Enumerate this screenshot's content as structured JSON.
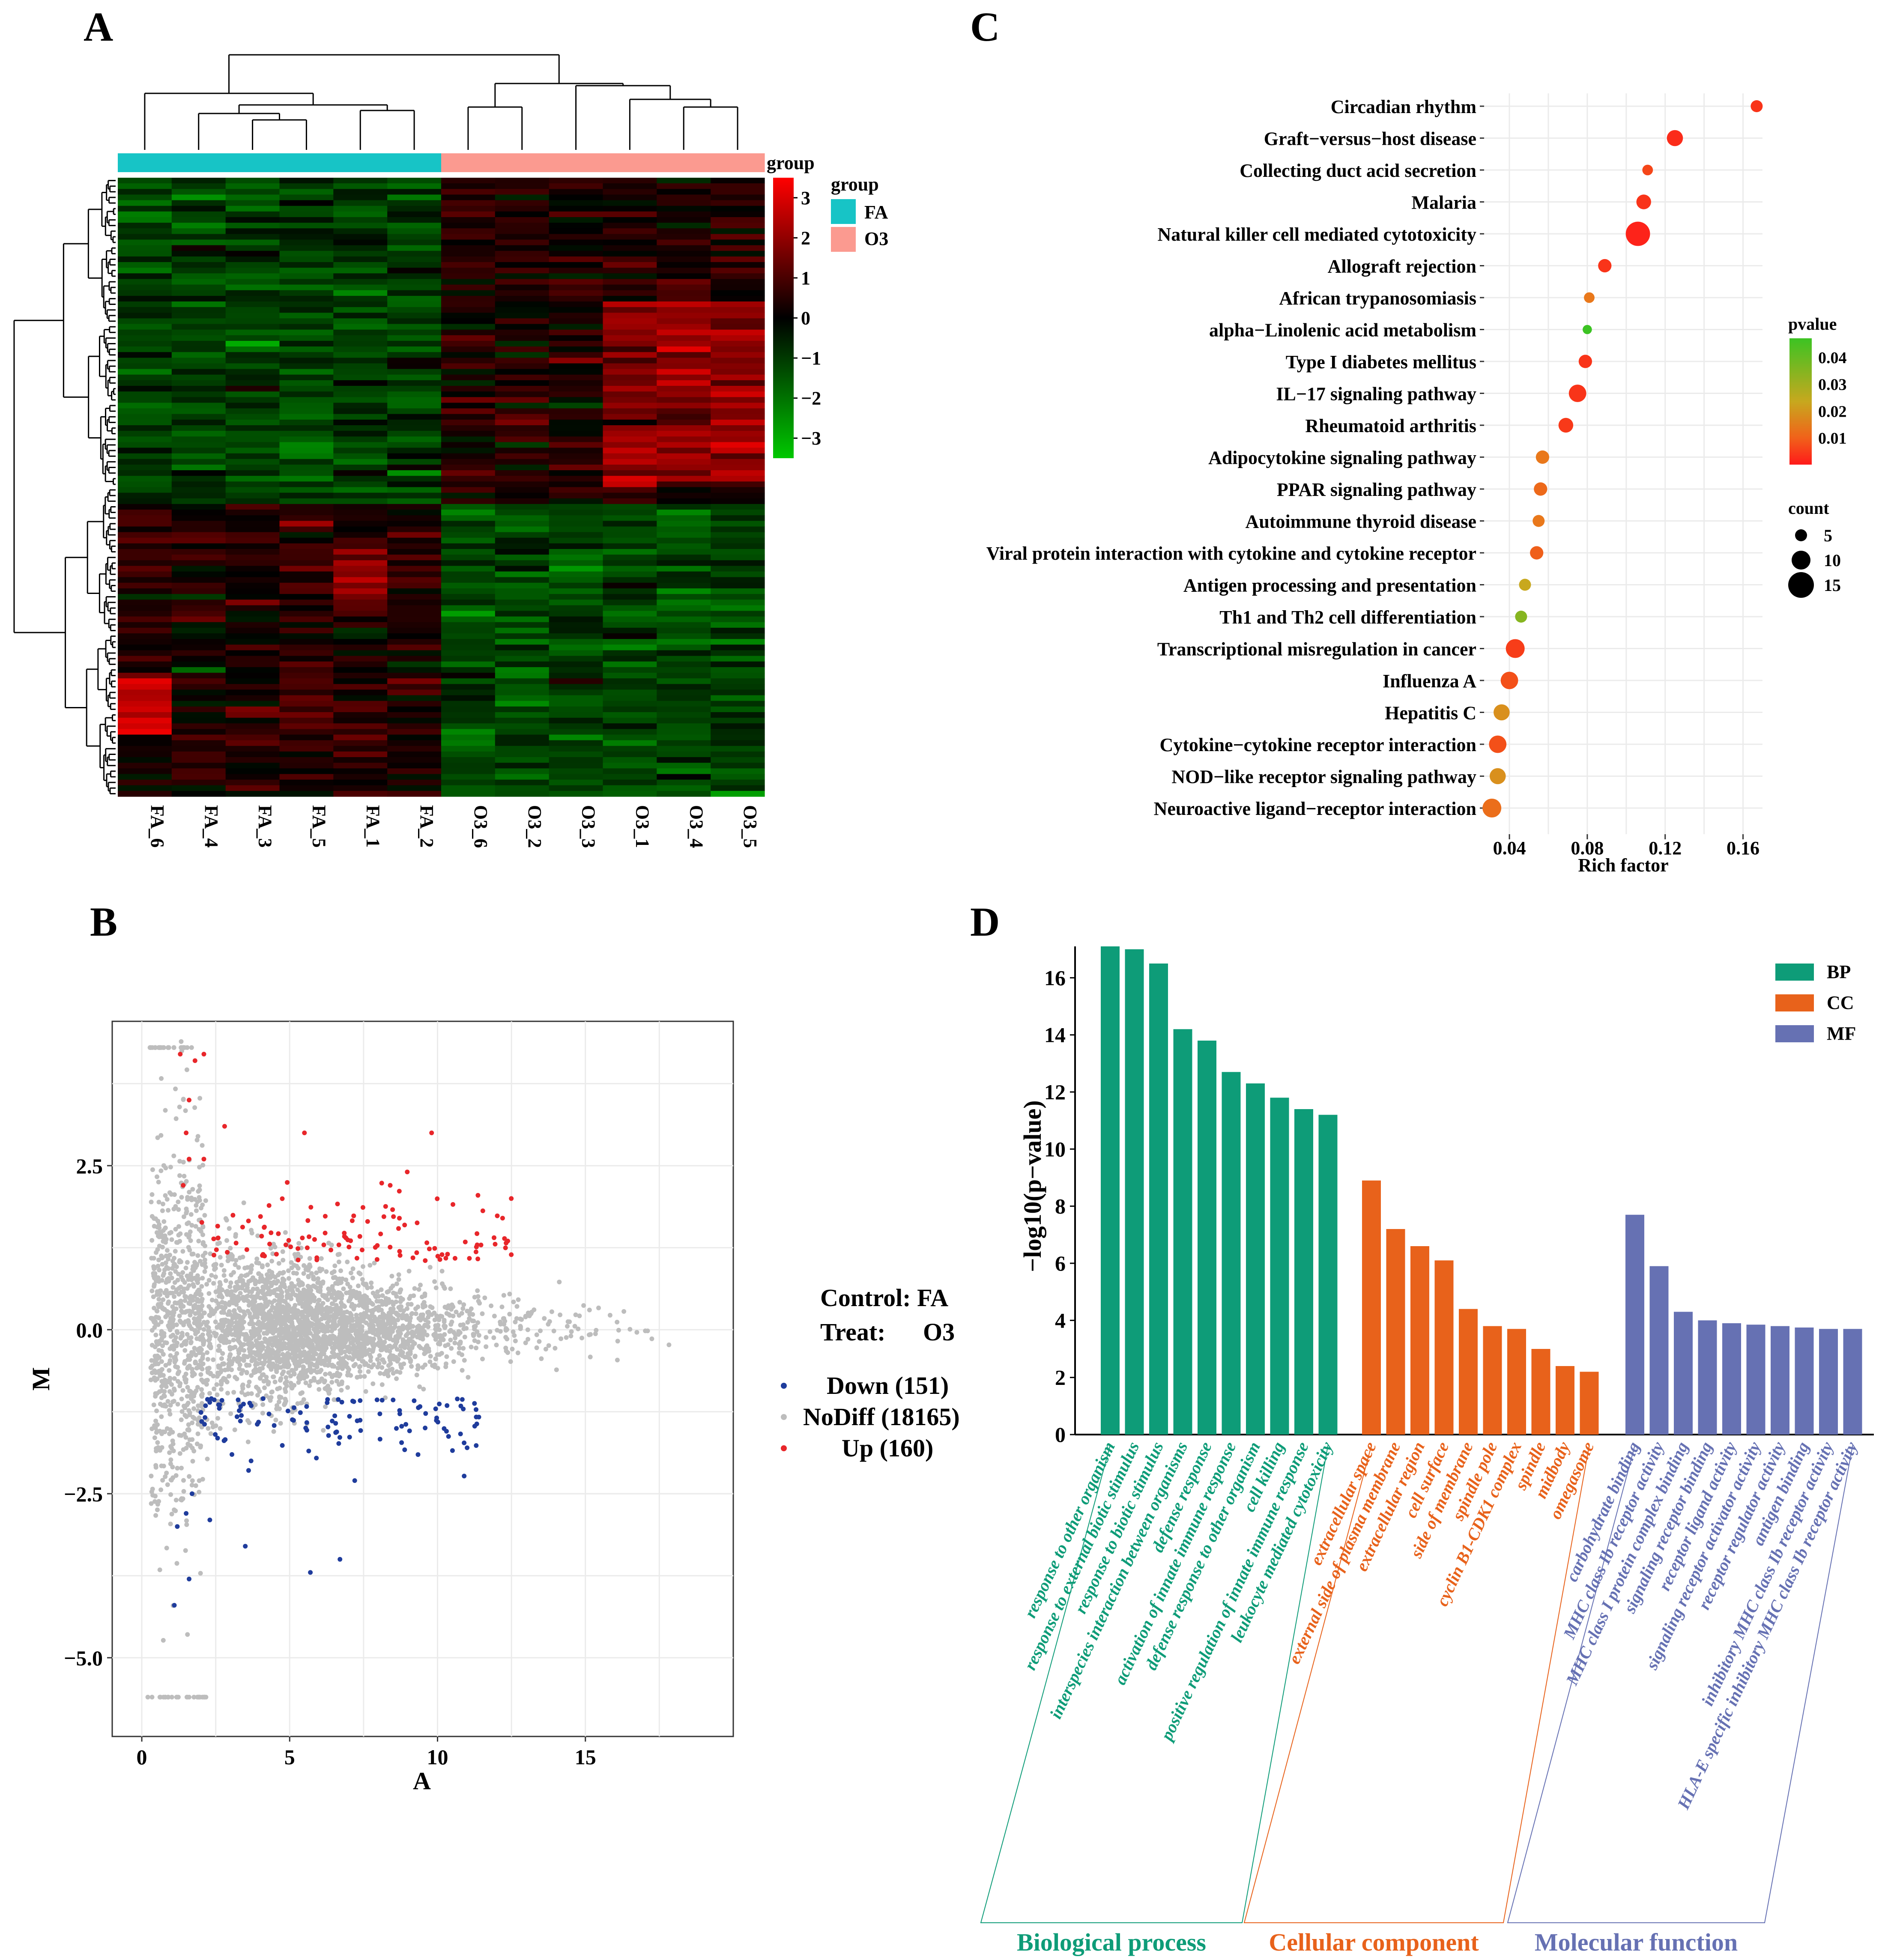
{
  "panels": {
    "a": "A",
    "b": "B",
    "c": "C",
    "d": "D"
  },
  "colors": {
    "fa": "#17c4c6",
    "o3": "#fb9a90",
    "up": "#e8262a",
    "down": "#1f3c9c",
    "nodiff": "#bdbdbd",
    "bp": "#0e9c78",
    "cc": "#e8621b",
    "mf": "#6671b3",
    "grid": "#ebebeb"
  },
  "chart_data": [
    {
      "type": "heatmap",
      "panel": "A",
      "columns": [
        "FA_6",
        "FA_4",
        "FA_3",
        "FA_5",
        "FA_1",
        "FA_2",
        "O3_6",
        "O3_2",
        "O3_3",
        "O3_1",
        "O3_4",
        "O3_5"
      ],
      "column_groups": [
        "FA",
        "FA",
        "FA",
        "FA",
        "FA",
        "FA",
        "O3",
        "O3",
        "O3",
        "O3",
        "O3",
        "O3"
      ],
      "annotation_title": "group",
      "legend_title": "group",
      "legend_entries": [
        "FA",
        "O3"
      ],
      "colorbar": {
        "ticks": [
          "3",
          "2",
          "1",
          "0",
          "−1",
          "−2",
          "−3"
        ],
        "range": [
          -3.5,
          3.5
        ]
      }
    },
    {
      "type": "scatter",
      "panel": "B",
      "xlabel": "A",
      "ylabel": "M",
      "xlim": [
        -1,
        20
      ],
      "ylim": [
        -6.2,
        4.7
      ],
      "xticks": [
        "0",
        "5",
        "10",
        "15"
      ],
      "yticks": [
        "2.5",
        "0.0",
        "−2.5",
        "−5.0"
      ],
      "ytick_values": [
        2.5,
        0,
        -2.5,
        -5.0
      ],
      "xtick_values": [
        0,
        5,
        10,
        15
      ],
      "info": [
        "Control: FA",
        "Treat:",
        "O3"
      ],
      "legend": [
        "Down (151)",
        "NoDiff (18165)",
        "Up (160)"
      ],
      "series": [
        {
          "name": "Down",
          "count": 151
        },
        {
          "name": "NoDiff",
          "count": 18165
        },
        {
          "name": "Up",
          "count": 160
        }
      ]
    },
    {
      "type": "scatter",
      "panel": "C",
      "xlabel": "Rich factor",
      "xlim": [
        0.027,
        0.17
      ],
      "xticks": [
        "0.04",
        "0.08",
        "0.12",
        "0.16"
      ],
      "xtick_values": [
        0.04,
        0.08,
        0.12,
        0.16
      ],
      "pvalue_title": "pvalue",
      "pvalue_ticks": [
        "0.04",
        "0.03",
        "0.02",
        "0.01"
      ],
      "pvalue_range": [
        0,
        0.047
      ],
      "count_title": "count",
      "count_legend": [
        "5",
        "10",
        "15"
      ],
      "terms": [
        {
          "label": "Circadian rhythm",
          "rich": 0.167,
          "pvalue": 0.006,
          "count": 5
        },
        {
          "label": "Graft−versus−host disease",
          "rich": 0.125,
          "pvalue": 0.004,
          "count": 8
        },
        {
          "label": "Collecting duct acid secretion",
          "rich": 0.111,
          "pvalue": 0.01,
          "count": 4
        },
        {
          "label": "Malaria",
          "rich": 0.109,
          "pvalue": 0.006,
          "count": 7
        },
        {
          "label": "Natural killer cell mediated cytotoxicity",
          "rich": 0.106,
          "pvalue": 0.002,
          "count": 14
        },
        {
          "label": "Allograft rejection",
          "rich": 0.089,
          "pvalue": 0.006,
          "count": 6
        },
        {
          "label": "African trypanosomiasis",
          "rich": 0.081,
          "pvalue": 0.02,
          "count": 4
        },
        {
          "label": "alpha−Linolenic acid metabolism",
          "rich": 0.08,
          "pvalue": 0.047,
          "count": 3
        },
        {
          "label": "Type I diabetes mellitus",
          "rich": 0.079,
          "pvalue": 0.006,
          "count": 6
        },
        {
          "label": "IL−17 signaling pathway",
          "rich": 0.075,
          "pvalue": 0.006,
          "count": 9
        },
        {
          "label": "Rheumatoid arthritis",
          "rich": 0.069,
          "pvalue": 0.007,
          "count": 7
        },
        {
          "label": "Adipocytokine signaling pathway",
          "rich": 0.057,
          "pvalue": 0.02,
          "count": 6
        },
        {
          "label": "PPAR signaling pathway",
          "rich": 0.056,
          "pvalue": 0.017,
          "count": 6
        },
        {
          "label": "Autoimmune thyroid disease",
          "rich": 0.055,
          "pvalue": 0.02,
          "count": 5
        },
        {
          "label": "Viral protein interaction with cytokine and cytokine receptor",
          "rich": 0.054,
          "pvalue": 0.015,
          "count": 6
        },
        {
          "label": "Antigen processing and presentation",
          "rich": 0.048,
          "pvalue": 0.03,
          "count": 5
        },
        {
          "label": "Th1 and Th2 cell differentiation",
          "rich": 0.046,
          "pvalue": 0.038,
          "count": 5
        },
        {
          "label": "Transcriptional misregulation in cancer",
          "rich": 0.043,
          "pvalue": 0.008,
          "count": 10
        },
        {
          "label": "Influenza A",
          "rich": 0.04,
          "pvalue": 0.012,
          "count": 9
        },
        {
          "label": "Hepatitis C",
          "rich": 0.036,
          "pvalue": 0.025,
          "count": 8
        },
        {
          "label": "Cytokine−cytokine receptor interaction",
          "rich": 0.034,
          "pvalue": 0.012,
          "count": 9
        },
        {
          "label": "NOD−like receptor signaling pathway",
          "rich": 0.034,
          "pvalue": 0.025,
          "count": 8
        },
        {
          "label": "Neuroactive ligand−receptor interaction",
          "rich": 0.031,
          "pvalue": 0.018,
          "count": 10
        }
      ]
    },
    {
      "type": "bar",
      "panel": "D",
      "ylabel": "−log10(p−value)",
      "ylim": [
        0,
        17.1
      ],
      "yticks": [
        "0",
        "2",
        "4",
        "6",
        "8",
        "10",
        "12",
        "14",
        "16"
      ],
      "ytick_values": [
        0,
        2,
        4,
        6,
        8,
        10,
        12,
        14,
        16
      ],
      "legend": [
        "BP",
        "CC",
        "MF"
      ],
      "groups": [
        {
          "key": "bp",
          "name": "Biological process",
          "categories": [
            "response to other organism",
            "response to external biotic stimulus",
            "response to biotic stimulus",
            "interspecies interaction between organisms",
            "defense response",
            "activation of innate immune response",
            "defense response to other organism",
            "cell killing",
            "positive regulation of innate immune response",
            "leukocyte mediated cytotoxicity"
          ],
          "values": [
            17.1,
            17.0,
            16.5,
            14.2,
            13.8,
            12.7,
            12.3,
            11.8,
            11.4,
            11.2
          ]
        },
        {
          "key": "cc",
          "name": "Cellular component",
          "categories": [
            "extracellular space",
            "external side of plasma membrane",
            "extracellular region",
            "cell surface",
            "side of membrane",
            "spindle pole",
            "cyclin B1-CDK1 complex",
            "spindle",
            "midbody",
            "omegasome"
          ],
          "values": [
            8.9,
            7.2,
            6.6,
            6.1,
            4.4,
            3.8,
            3.7,
            3.0,
            2.4,
            2.2
          ]
        },
        {
          "key": "mf",
          "name": "Molecular function",
          "categories": [
            "carbohydrate binding",
            "MHC class Ib receptor activity",
            "MHC class I protein complex binding",
            "signaling receptor binding",
            "receptor ligand activity",
            "signaling receptor activator activity",
            "receptor regulator activity",
            "antigen binding",
            "inhibitory MHC class Ib receptor activity",
            "HLA-E specific inhibitory MHC class Ib receptor activity"
          ],
          "values": [
            7.7,
            5.9,
            4.3,
            4.0,
            3.9,
            3.85,
            3.8,
            3.75,
            3.7,
            3.7
          ]
        }
      ]
    }
  ]
}
